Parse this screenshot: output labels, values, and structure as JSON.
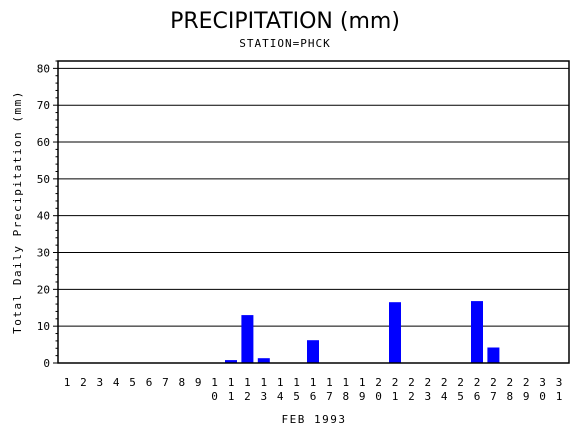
{
  "chart_data": {
    "type": "bar",
    "title": "PRECIPITATION (mm)",
    "subtitle": "STATION=PHCK",
    "ylabel": "Total Daily Precipitation (mm)",
    "xlabel": "FEB 1993",
    "ylim": [
      0,
      82
    ],
    "yticks": [
      0,
      10,
      20,
      30,
      40,
      50,
      60,
      70,
      80
    ],
    "grid": true,
    "bar_color": "#0000ff",
    "categories": [
      "1",
      "2",
      "3",
      "4",
      "5",
      "6",
      "7",
      "8",
      "9",
      "10",
      "11",
      "12",
      "13",
      "14",
      "15",
      "16",
      "17",
      "18",
      "19",
      "20",
      "21",
      "22",
      "23",
      "24",
      "25",
      "26",
      "27",
      "28",
      "29",
      "30",
      "31"
    ],
    "values": [
      0,
      0,
      0,
      0,
      0,
      0,
      0,
      0,
      0,
      0,
      0.8,
      13,
      1.3,
      0,
      0,
      6.2,
      0,
      0,
      0,
      0,
      16.5,
      0,
      0,
      0,
      0,
      16.8,
      4.2,
      0,
      0,
      0,
      0
    ]
  }
}
